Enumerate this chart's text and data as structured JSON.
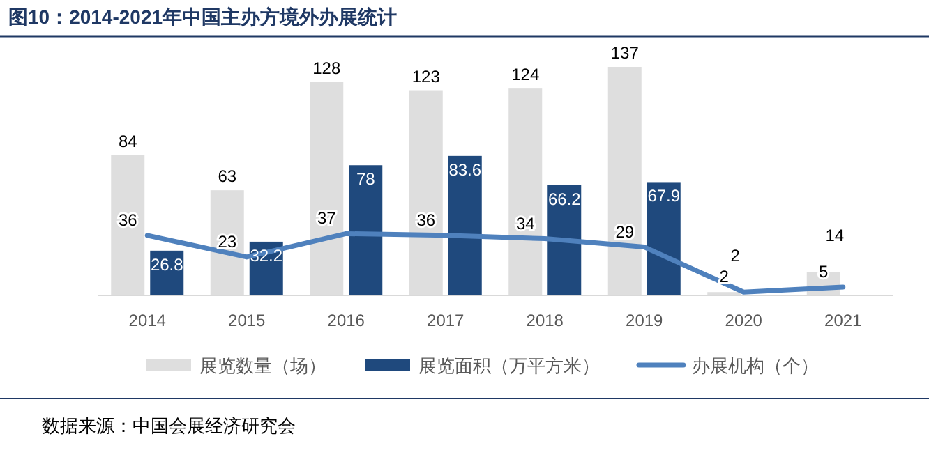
{
  "chart_data": {
    "type": "bar",
    "title": "图10：2014-2021年中国主办方境外办展统计",
    "categories": [
      "2014",
      "2015",
      "2016",
      "2017",
      "2018",
      "2019",
      "2020",
      "2021"
    ],
    "series": [
      {
        "name": "展览数量（场）",
        "color": "#dedede",
        "values": [
          84,
          63,
          128,
          123,
          124,
          137,
          2,
          14
        ],
        "value_labels": [
          "84",
          "63",
          "128",
          "123",
          "124",
          "137",
          "2",
          "14"
        ]
      },
      {
        "name": "展览面积（万平方米）",
        "color": "#1f497d",
        "values": [
          26.8,
          32.2,
          78,
          83.6,
          66.2,
          67.9,
          null,
          null
        ],
        "value_labels": [
          "26.8",
          "32.2",
          "78",
          "83.6",
          "66.2",
          "67.9",
          null,
          null
        ]
      },
      {
        "name": "办展机构（个）",
        "type": "line",
        "color": "#4f81bd",
        "values": [
          36,
          23,
          37,
          36,
          34,
          29,
          2,
          5
        ],
        "value_labels": [
          "36",
          "23",
          "37",
          "36",
          "34",
          "29",
          "2",
          "5"
        ]
      }
    ],
    "legend": "bottom",
    "annotations": [
      "数据来源：中国会展经济研究会"
    ]
  }
}
